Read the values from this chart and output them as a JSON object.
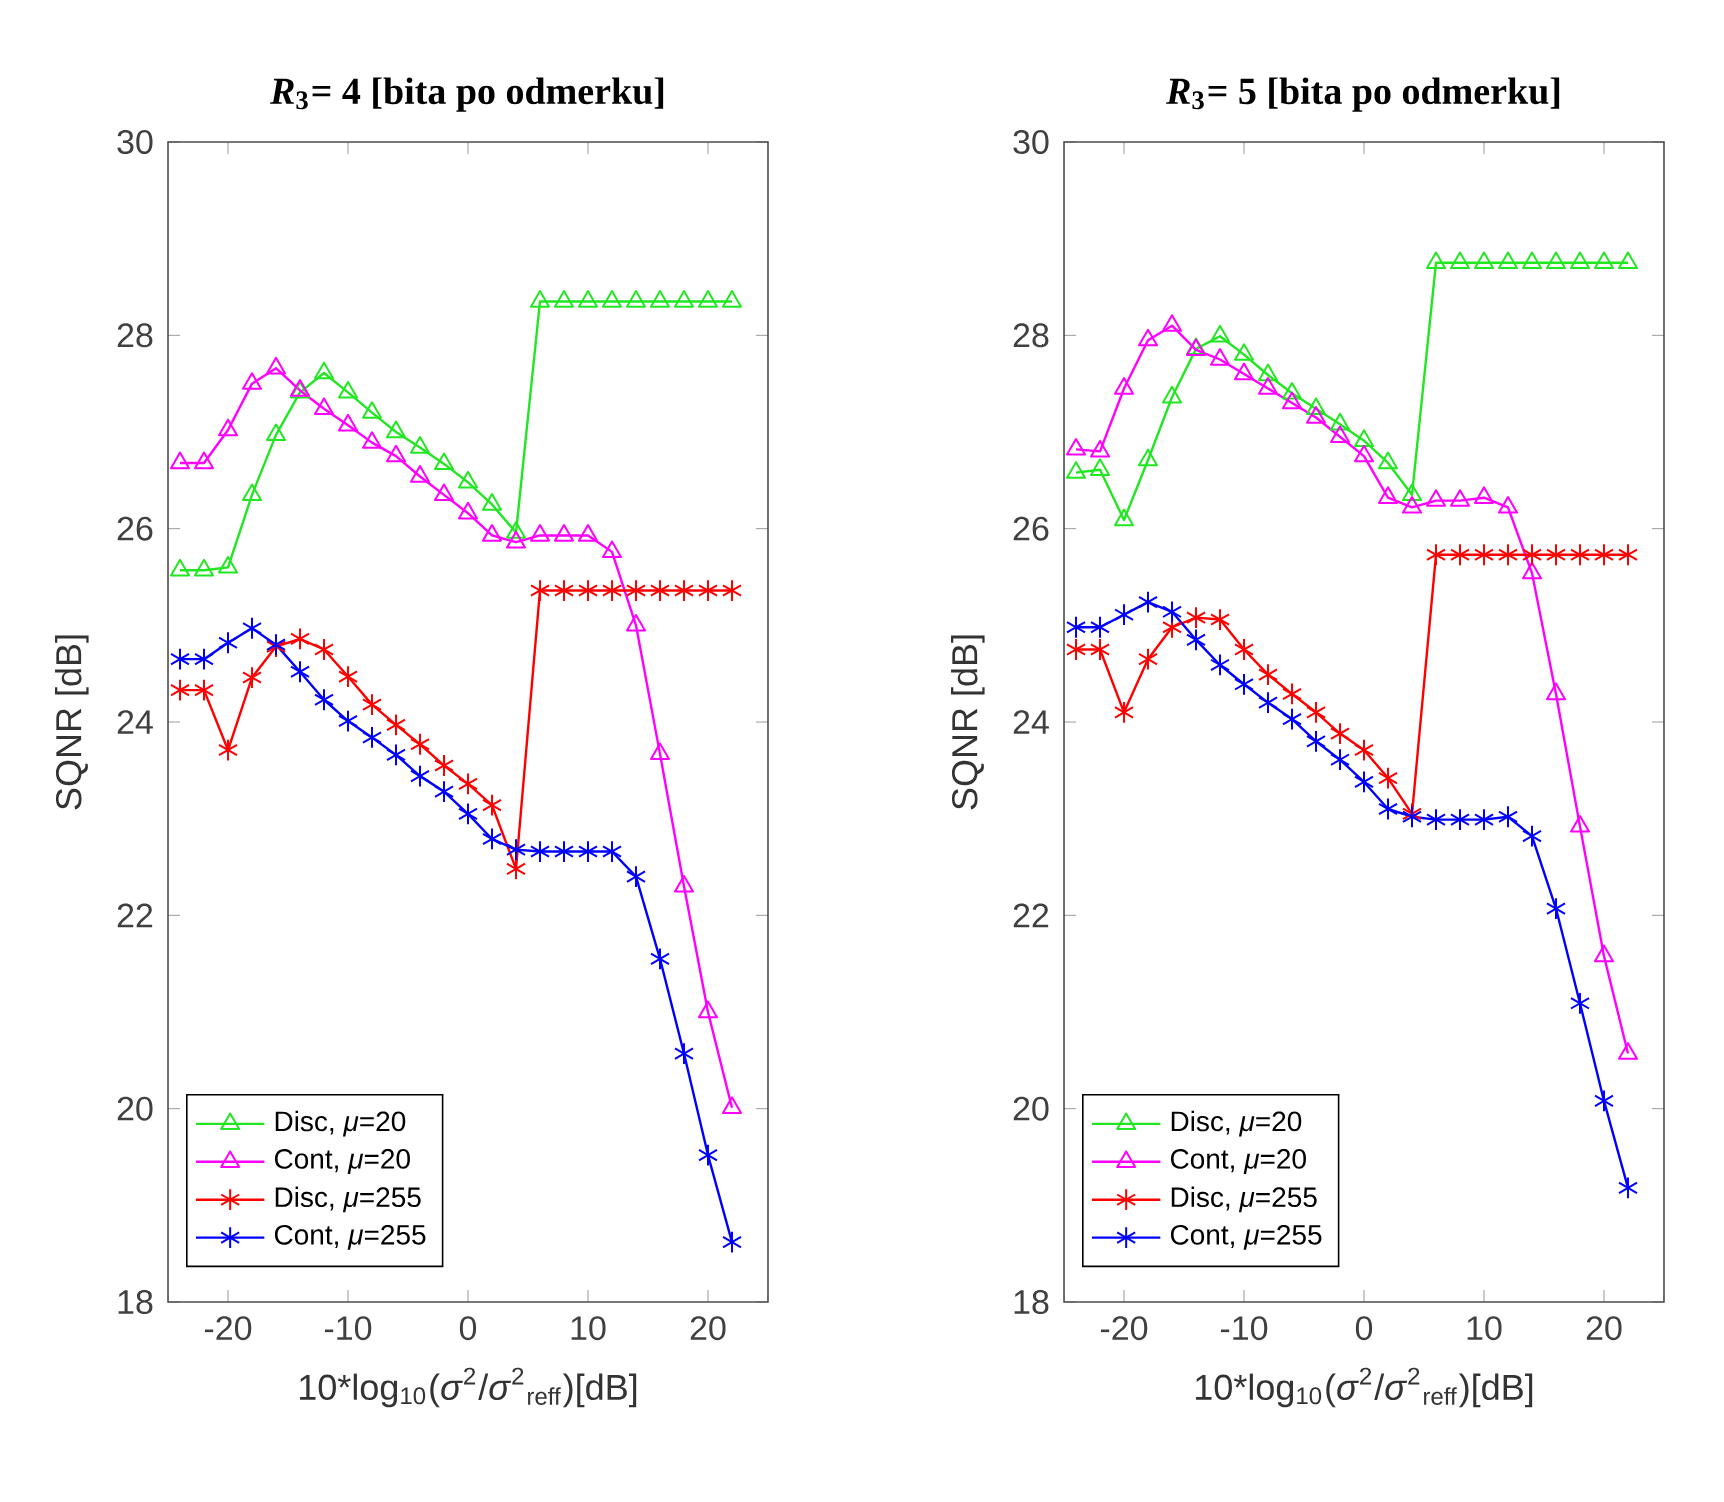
{
  "chart_data": [
    {
      "type": "line",
      "title": "*R*$_{3}$= 4 [bita po odmerku]",
      "xlabel": "10*log$_{10}$(*σ*$^{2}$/*σ*$^{2}$$_{reff}$)[dB]",
      "ylabel": "SQNR [dB]",
      "x": [
        -24,
        -22,
        -20,
        -18,
        -16,
        -14,
        -12,
        -10,
        -8,
        -6,
        -4,
        -2,
        0,
        2,
        4,
        6,
        8,
        10,
        12,
        14,
        16,
        18,
        20,
        22
      ],
      "xlim": [
        -25,
        25
      ],
      "xticks": [
        -20,
        -10,
        0,
        10,
        20
      ],
      "ylim": [
        18,
        30
      ],
      "yticks": [
        18,
        20,
        22,
        24,
        26,
        28,
        30
      ],
      "legend": "bottom left",
      "line_style": "solid",
      "series": [
        {
          "name": "Disc, *μ*=20",
          "color": "#22e622",
          "marker": "triangle",
          "values": [
            25.57,
            25.57,
            25.6,
            26.35,
            26.97,
            27.41,
            27.61,
            27.41,
            27.2,
            27.0,
            26.84,
            26.67,
            26.48,
            26.25,
            25.96,
            28.35,
            28.35,
            28.35,
            28.35,
            28.35,
            28.35,
            28.35,
            28.35,
            28.35
          ]
        },
        {
          "name": "Cont, *μ*=20",
          "color": "#ff00ff",
          "marker": "triangle",
          "values": [
            26.68,
            26.68,
            27.02,
            27.5,
            27.66,
            27.43,
            27.24,
            27.07,
            26.89,
            26.75,
            26.54,
            26.35,
            26.16,
            25.93,
            25.86,
            25.93,
            25.93,
            25.93,
            25.76,
            25.0,
            23.67,
            22.3,
            21.0,
            20.01
          ]
        },
        {
          "name": "Disc, *μ*=255",
          "color": "#ff0000",
          "marker": "cross",
          "values": [
            24.33,
            24.33,
            23.71,
            24.46,
            24.78,
            24.86,
            24.75,
            24.47,
            24.18,
            23.97,
            23.77,
            23.55,
            23.36,
            23.14,
            22.48,
            25.36,
            25.36,
            25.36,
            25.36,
            25.36,
            25.36,
            25.36,
            25.36,
            25.36
          ]
        },
        {
          "name": "Cont, *μ*=255",
          "color": "#0000ff",
          "marker": "cross",
          "values": [
            24.65,
            24.65,
            24.82,
            24.97,
            24.8,
            24.52,
            24.23,
            24.01,
            23.84,
            23.66,
            23.44,
            23.28,
            23.05,
            22.79,
            22.68,
            22.66,
            22.66,
            22.66,
            22.66,
            22.4,
            21.55,
            20.57,
            19.52,
            18.62
          ]
        }
      ]
    },
    {
      "type": "line",
      "title": "*R*$_{3}$= 5 [bita po odmerku]",
      "xlabel": "10*log$_{10}$(*σ*$^{2}$/*σ*$^{2}$$_{reff}$)[dB]",
      "ylabel": "SQNR [dB]",
      "x": [
        -24,
        -22,
        -20,
        -18,
        -16,
        -14,
        -12,
        -10,
        -8,
        -6,
        -4,
        -2,
        0,
        2,
        4,
        6,
        8,
        10,
        12,
        14,
        16,
        18,
        20,
        22
      ],
      "xlim": [
        -25,
        25
      ],
      "xticks": [
        -20,
        -10,
        0,
        10,
        20
      ],
      "ylim": [
        18,
        30
      ],
      "yticks": [
        18,
        20,
        22,
        24,
        26,
        28,
        30
      ],
      "legend": "bottom left",
      "line_style": "solid",
      "series": [
        {
          "name": "Disc, *μ*=20",
          "color": "#22e622",
          "marker": "triangle",
          "values": [
            26.58,
            26.61,
            26.09,
            26.71,
            27.36,
            27.86,
            27.99,
            27.8,
            27.59,
            27.4,
            27.24,
            27.08,
            26.91,
            26.68,
            26.35,
            28.75,
            28.75,
            28.75,
            28.75,
            28.75,
            28.75,
            28.75,
            28.75,
            28.75
          ]
        },
        {
          "name": "Cont, *μ*=20",
          "color": "#ff00ff",
          "marker": "triangle",
          "values": [
            26.82,
            26.8,
            27.45,
            27.95,
            28.1,
            27.85,
            27.75,
            27.6,
            27.45,
            27.3,
            27.15,
            26.95,
            26.75,
            26.32,
            26.22,
            26.29,
            26.29,
            26.32,
            26.22,
            25.54,
            24.29,
            22.92,
            21.58,
            20.57
          ]
        },
        {
          "name": "Disc, *μ*=255",
          "color": "#ff0000",
          "marker": "cross",
          "values": [
            24.75,
            24.75,
            24.1,
            24.65,
            24.98,
            25.08,
            25.06,
            24.75,
            24.49,
            24.29,
            24.1,
            23.88,
            23.71,
            23.42,
            23.05,
            25.73,
            25.73,
            25.73,
            25.73,
            25.73,
            25.73,
            25.73,
            25.73,
            25.73
          ]
        },
        {
          "name": "Cont, *μ*=255",
          "color": "#0000ff",
          "marker": "cross",
          "values": [
            24.98,
            24.98,
            25.11,
            25.24,
            25.14,
            24.85,
            24.59,
            24.39,
            24.2,
            24.03,
            23.8,
            23.61,
            23.38,
            23.1,
            23.02,
            22.99,
            22.99,
            22.99,
            23.02,
            22.82,
            22.07,
            21.09,
            20.08,
            19.18
          ]
        }
      ]
    }
  ]
}
